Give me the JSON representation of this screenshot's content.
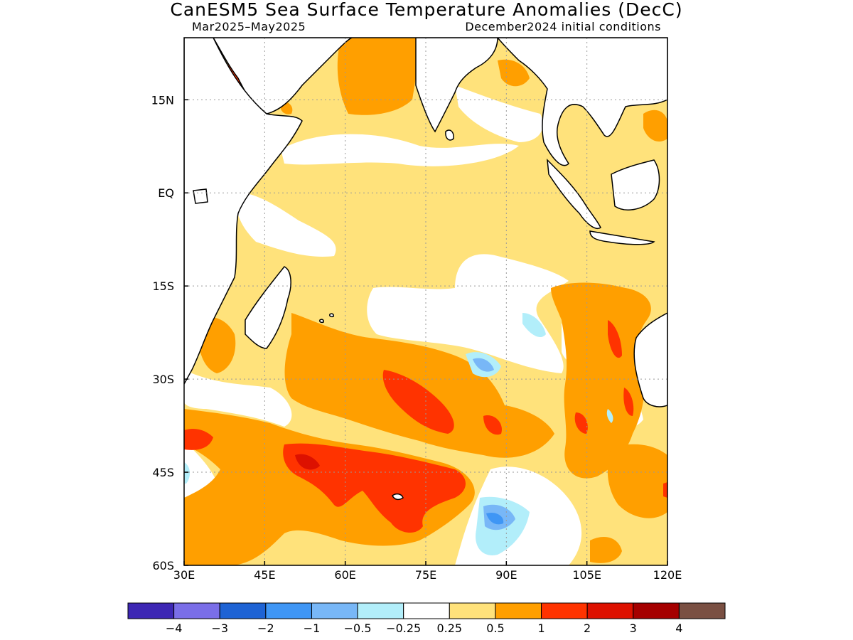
{
  "title": "CanESM5 Sea Surface Temperature Anomalies (DecC)",
  "subtitle_left": "Mar2025–May2025",
  "subtitle_right": "December2024 initial conditions",
  "axes": {
    "lon": {
      "range": [
        30,
        120
      ],
      "ticks": [
        {
          "value": 30,
          "label": "30E"
        },
        {
          "value": 45,
          "label": "45E"
        },
        {
          "value": 60,
          "label": "60E"
        },
        {
          "value": 75,
          "label": "75E"
        },
        {
          "value": 90,
          "label": "90E"
        },
        {
          "value": 105,
          "label": "105E"
        },
        {
          "value": 120,
          "label": "120E"
        }
      ]
    },
    "lat": {
      "range": [
        -60,
        25
      ],
      "ticks": [
        {
          "value": 15,
          "label": "15N"
        },
        {
          "value": 0,
          "label": "EQ"
        },
        {
          "value": -15,
          "label": "15S"
        },
        {
          "value": -30,
          "label": "30S"
        },
        {
          "value": -45,
          "label": "45S"
        },
        {
          "value": -60,
          "label": "60S"
        }
      ]
    },
    "grid": true
  },
  "colorbar": {
    "colors": [
      "#3d27b4",
      "#7a6ee8",
      "#1e63d4",
      "#3f96f5",
      "#78b7f7",
      "#b2eefa",
      "#ffffff",
      "#ffe27b",
      "#ff9f00",
      "#ff3300",
      "#dd1100",
      "#a50000",
      "#7a5043"
    ],
    "labels": [
      "−4",
      "−3",
      "−2",
      "−1",
      "−0.5",
      "−0.25",
      "0.25",
      "0.5",
      "1",
      "2",
      "3",
      "4"
    ]
  },
  "field_colors": {
    "land": "#ffffff",
    "weak_pos": "#ffe27b",
    "mid_pos": "#ff9f00",
    "strong_pos": "#ff3300",
    "very_strong_pos": "#dd1100",
    "weak_neg": "#b2eefa",
    "mid_neg": "#78b7f7",
    "strong_neg": "#3f96f5"
  }
}
